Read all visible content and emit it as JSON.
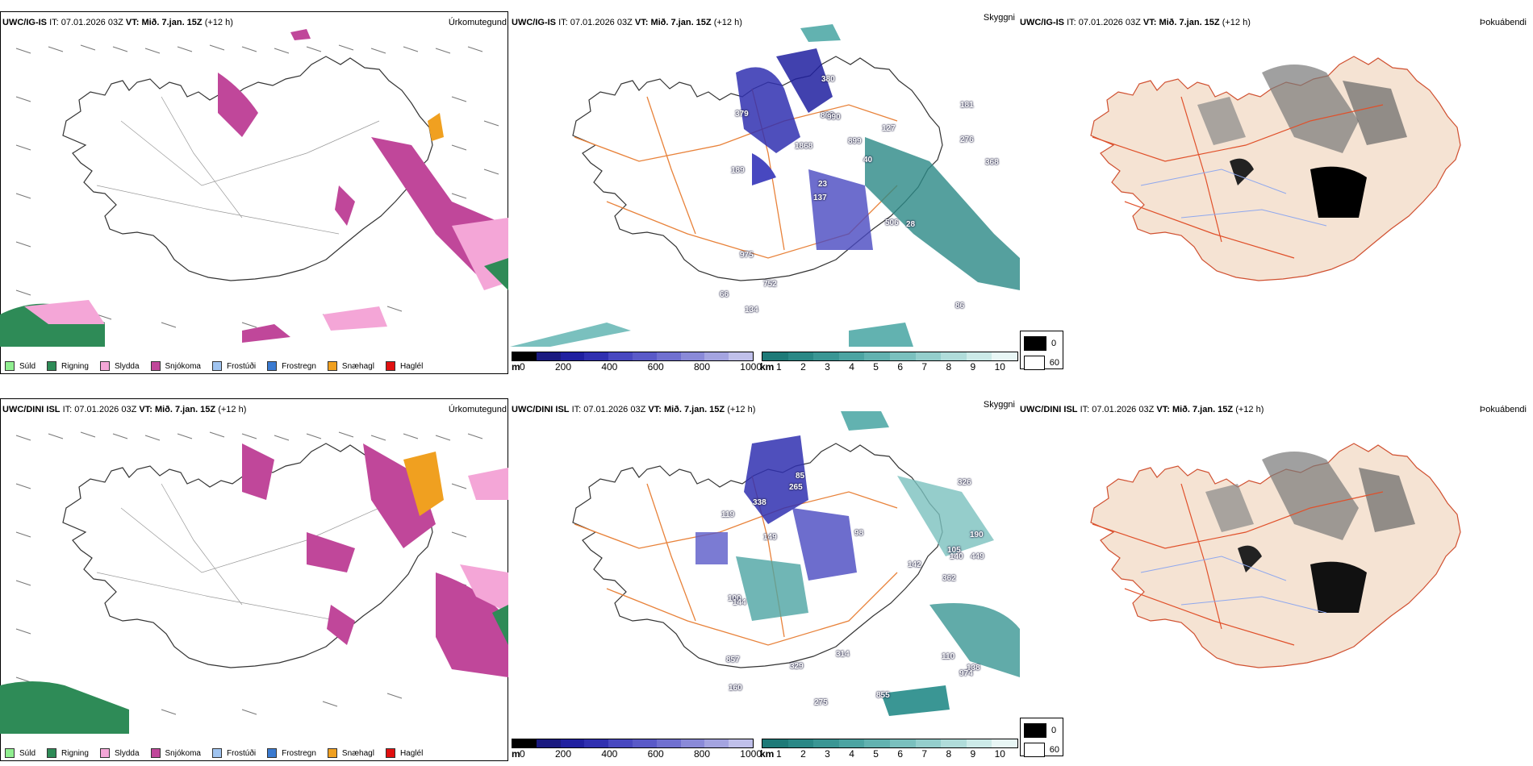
{
  "rows": [
    {
      "model": "UWC/IG-IS",
      "it_label": "IT:",
      "it_value": "07.01.2026 03Z",
      "vt_label": "VT:",
      "vt_value": "Mið. 7.jan. 15Z",
      "lead": "(+12 h)"
    },
    {
      "model": "UWC/DINI ISL",
      "it_label": "IT:",
      "it_value": "07.01.2026 03Z",
      "vt_label": "VT:",
      "vt_value": "Mið. 7.jan. 15Z",
      "lead": "(+12 h)"
    }
  ],
  "panels": {
    "precip_tag": "Úrkomutegund",
    "visibility_tag": "Skyggni",
    "fog_tag": "Þokuábendi"
  },
  "precip_legend": [
    {
      "label": "Súld",
      "color": "#90ee90"
    },
    {
      "label": "Rigning",
      "color": "#2e8b57"
    },
    {
      "label": "Slydda",
      "color": "#f4a6d7"
    },
    {
      "label": "Snjókoma",
      "color": "#c0479a"
    },
    {
      "label": "Frostúði",
      "color": "#a0c4f0"
    },
    {
      "label": "Frostregn",
      "color": "#3a7ad0"
    },
    {
      "label": "Snæhagl",
      "color": "#f0a020"
    },
    {
      "label": "Haglél",
      "color": "#e01010"
    }
  ],
  "vis_m_scale": {
    "unit": "m",
    "ticks": [
      "0",
      "200",
      "400",
      "600",
      "800",
      "1000"
    ],
    "colors": [
      "#000000",
      "#1a1a80",
      "#2020a0",
      "#3030b0",
      "#4848c0",
      "#5a5ac8",
      "#7070d0",
      "#8a8ad8",
      "#a4a4e0",
      "#c0c0ea"
    ]
  },
  "vis_km_scale": {
    "unit": "km",
    "ticks": [
      "1",
      "2",
      "3",
      "4",
      "5",
      "6",
      "7",
      "8",
      "9",
      "10"
    ],
    "colors": [
      "#1e7a78",
      "#2a8886",
      "#3a9694",
      "#4ca4a2",
      "#62b2b0",
      "#7ac0be",
      "#94cecc",
      "#b0dcda",
      "#cceae8",
      "#e8f6f5"
    ]
  },
  "cloud_legend": [
    {
      "label": "0",
      "color": "#000000"
    },
    {
      "label": "60",
      "color": "#ffffff"
    }
  ],
  "vis_labels_top": [
    "86",
    "189",
    "181",
    "137",
    "127",
    "134",
    "863",
    "899",
    "975",
    "1868",
    "66",
    "752",
    "990",
    "40",
    "28",
    "379",
    "380",
    "368",
    "506",
    "276",
    "23"
  ],
  "vis_labels_bottom": [
    "110",
    "190",
    "138",
    "98",
    "160",
    "85",
    "105",
    "329",
    "326",
    "149",
    "449",
    "119",
    "362",
    "275",
    "857",
    "338",
    "974",
    "265",
    "314",
    "140",
    "100",
    "144",
    "855",
    "142"
  ],
  "colors": {
    "land_fog": "#f5e3d3",
    "road_orange": "#e8823a",
    "road_red": "#e0502a",
    "river": "#8fa8ee"
  }
}
